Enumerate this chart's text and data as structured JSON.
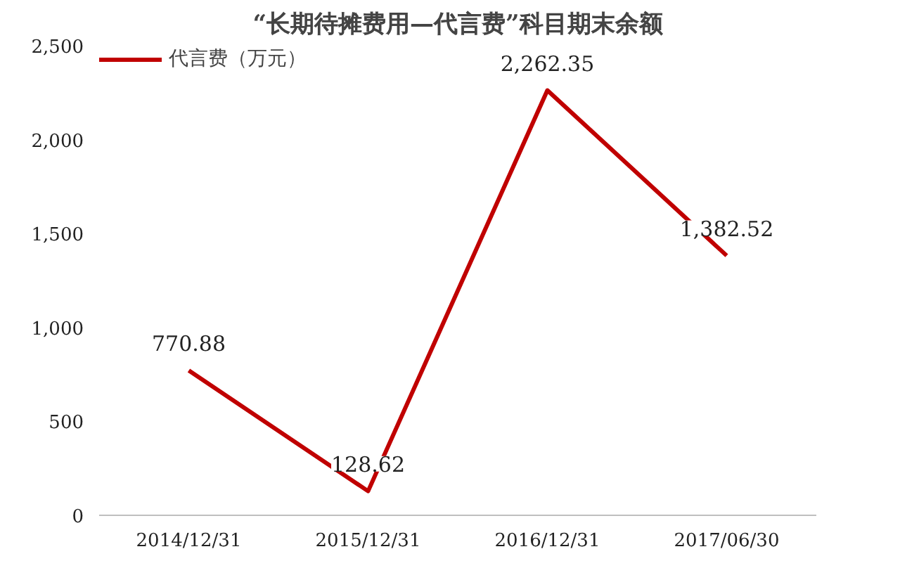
{
  "chart_data": {
    "type": "line",
    "title": "“长期待摊费用—代言费”科目期末余额",
    "categories": [
      "2014/12/31",
      "2015/12/31",
      "2016/12/31",
      "2017/06/30"
    ],
    "series": [
      {
        "name": "代言费（万元）",
        "color": "#c00000",
        "values": [
          770.88,
          128.62,
          2262.35,
          1382.52
        ],
        "value_labels": [
          "770.88",
          "128.62",
          "2,262.35",
          "1,382.52"
        ]
      }
    ],
    "ylim": [
      0,
      2500
    ],
    "yticks": [
      0,
      {
        "value": 500,
        "label": "500"
      },
      {
        "value": 1000,
        "label": "1,000"
      },
      {
        "value": 1500,
        "label": "1,500"
      },
      {
        "value": 2000,
        "label": "2,000"
      },
      {
        "value": 2500,
        "label": "2,500"
      }
    ],
    "grid": false,
    "legend": "top",
    "marker": "none",
    "line_style": "solid"
  }
}
